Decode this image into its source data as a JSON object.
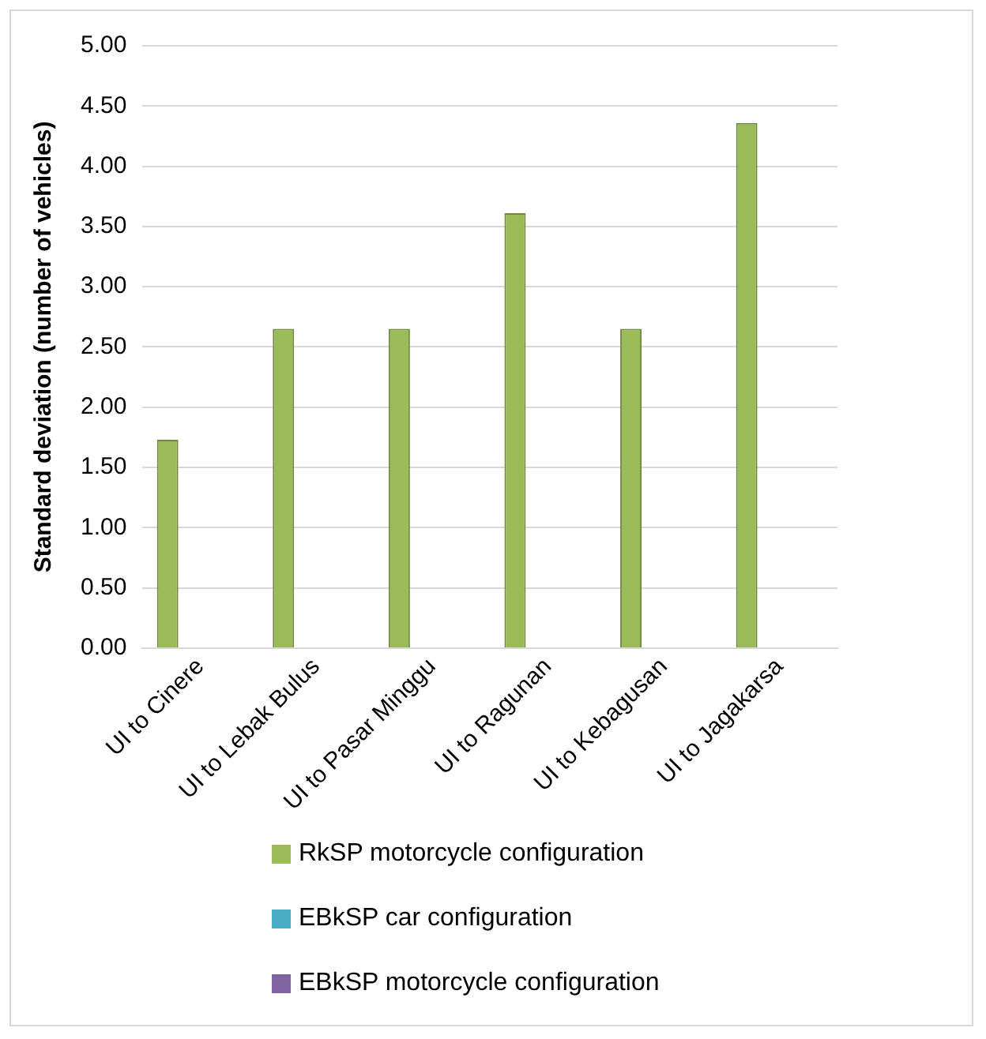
{
  "chart_data": {
    "type": "bar",
    "ylabel": "Standard deviation (number of vehicles)",
    "categories": [
      "UI to Cinere",
      "UI to Lebak Bulus",
      "UI to Pasar Minggu",
      "UI to Ragunan",
      "UI to Kebagusan",
      "UI to Jagakarsa"
    ],
    "series": [
      {
        "name": "RkSP motorcycle configuration",
        "color": "#9bbb59",
        "values": [
          1.73,
          2.65,
          2.65,
          3.61,
          2.65,
          4.36
        ]
      },
      {
        "name": "EBkSP car configuration",
        "color": "#4bacc6",
        "values": [
          null,
          null,
          null,
          null,
          null,
          null
        ]
      },
      {
        "name": "EBkSP motorcycle configuration",
        "color": "#8064a2",
        "values": [
          null,
          null,
          null,
          null,
          null,
          null
        ]
      }
    ],
    "ylim": [
      0,
      5
    ],
    "yticks": [
      {
        "value": 0,
        "label": "0.00"
      },
      {
        "value": 0.5,
        "label": "0.50"
      },
      {
        "value": 1,
        "label": "1.00"
      },
      {
        "value": 1.5,
        "label": "1.50"
      },
      {
        "value": 2,
        "label": "2.00"
      },
      {
        "value": 2.5,
        "label": "2.50"
      },
      {
        "value": 3,
        "label": "3.00"
      },
      {
        "value": 3.5,
        "label": "3.50"
      },
      {
        "value": 4,
        "label": "4.00"
      },
      {
        "value": 4.5,
        "label": "4.50"
      },
      {
        "value": 5,
        "label": "5.00"
      }
    ],
    "grid": "y",
    "legend": "bottom"
  }
}
